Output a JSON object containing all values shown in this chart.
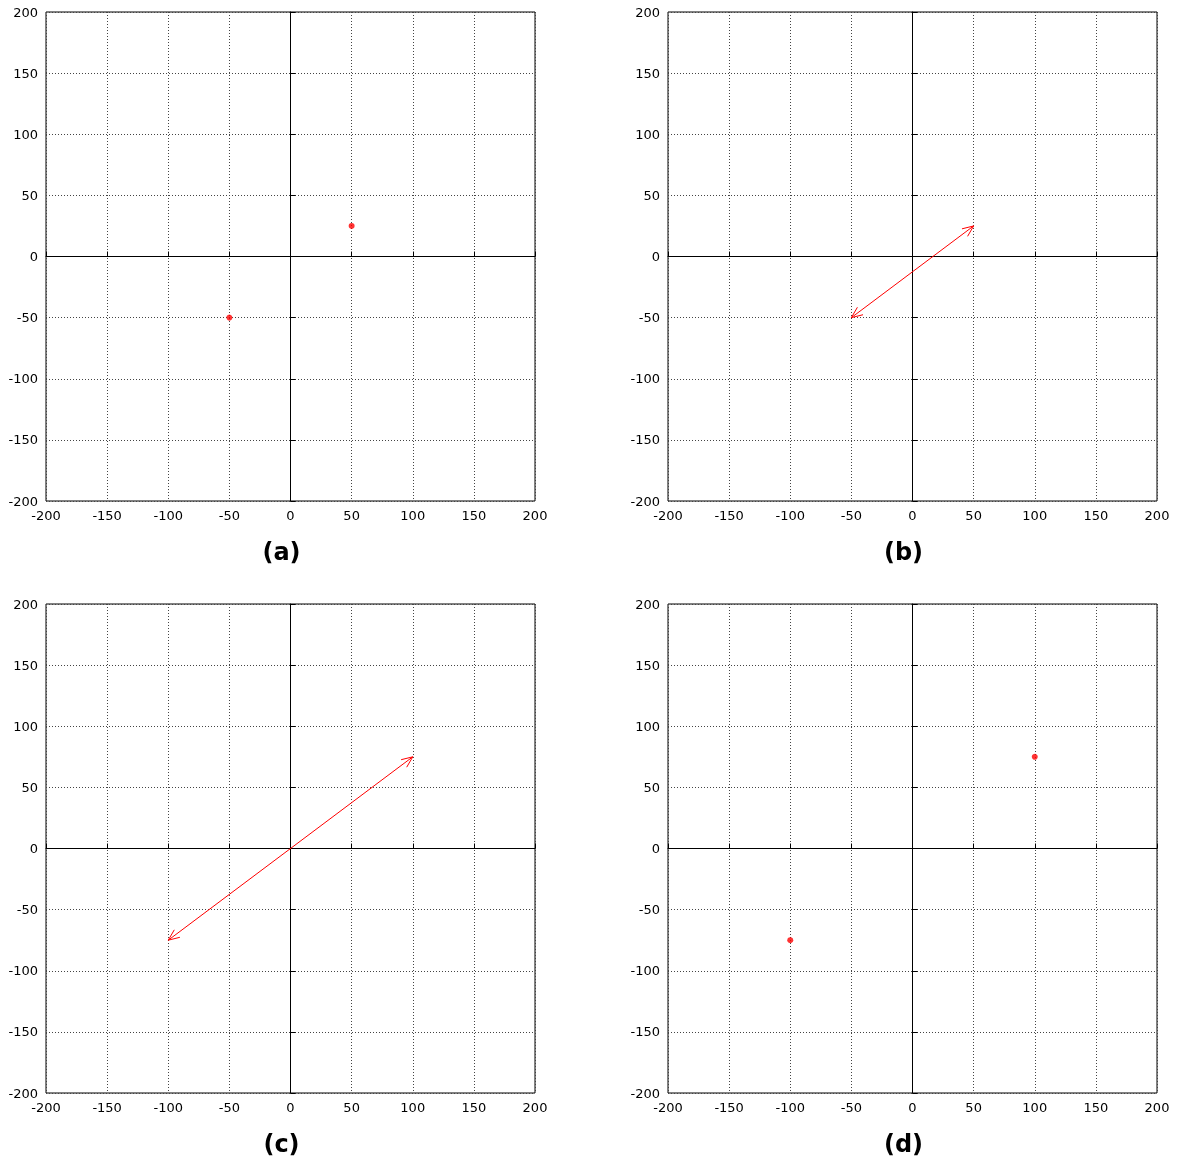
{
  "chart_data": [
    {
      "type": "scatter",
      "title": "(a)",
      "xlim": [
        -200,
        200
      ],
      "ylim": [
        -200,
        200
      ],
      "xticks": [
        -200,
        -150,
        -100,
        -50,
        0,
        50,
        100,
        150,
        200
      ],
      "yticks": [
        -200,
        -150,
        -100,
        -50,
        0,
        50,
        100,
        150,
        200
      ],
      "grid": true,
      "marker": "circle",
      "series": [
        {
          "color": "#ff0000",
          "x": [
            -50,
            50
          ],
          "values": [
            -50,
            25
          ]
        }
      ]
    },
    {
      "type": "line",
      "title": "(b)",
      "xlim": [
        -200,
        200
      ],
      "ylim": [
        -200,
        200
      ],
      "xticks": [
        -200,
        -150,
        -100,
        -50,
        0,
        50,
        100,
        150,
        200
      ],
      "yticks": [
        -200,
        -150,
        -100,
        -50,
        0,
        50,
        100,
        150,
        200
      ],
      "grid": true,
      "line_style": "solid",
      "series": [
        {
          "color": "#ff0000",
          "x": [
            -50,
            50
          ],
          "values": [
            -50,
            25
          ]
        }
      ]
    },
    {
      "type": "line",
      "title": "(c)",
      "xlim": [
        -200,
        200
      ],
      "ylim": [
        -200,
        200
      ],
      "xticks": [
        -200,
        -150,
        -100,
        -50,
        0,
        50,
        100,
        150,
        200
      ],
      "yticks": [
        -200,
        -150,
        -100,
        -50,
        0,
        50,
        100,
        150,
        200
      ],
      "grid": true,
      "line_style": "solid",
      "series": [
        {
          "color": "#ff0000",
          "x": [
            -100,
            100
          ],
          "values": [
            -75,
            75
          ]
        }
      ]
    },
    {
      "type": "scatter",
      "title": "(d)",
      "xlim": [
        -200,
        200
      ],
      "ylim": [
        -200,
        200
      ],
      "xticks": [
        -200,
        -150,
        -100,
        -50,
        0,
        50,
        100,
        150,
        200
      ],
      "yticks": [
        -200,
        -150,
        -100,
        -50,
        0,
        50,
        100,
        150,
        200
      ],
      "grid": true,
      "marker": "circle",
      "series": [
        {
          "color": "#ff0000",
          "x": [
            -100,
            100
          ],
          "values": [
            -75,
            75
          ]
        }
      ]
    }
  ]
}
